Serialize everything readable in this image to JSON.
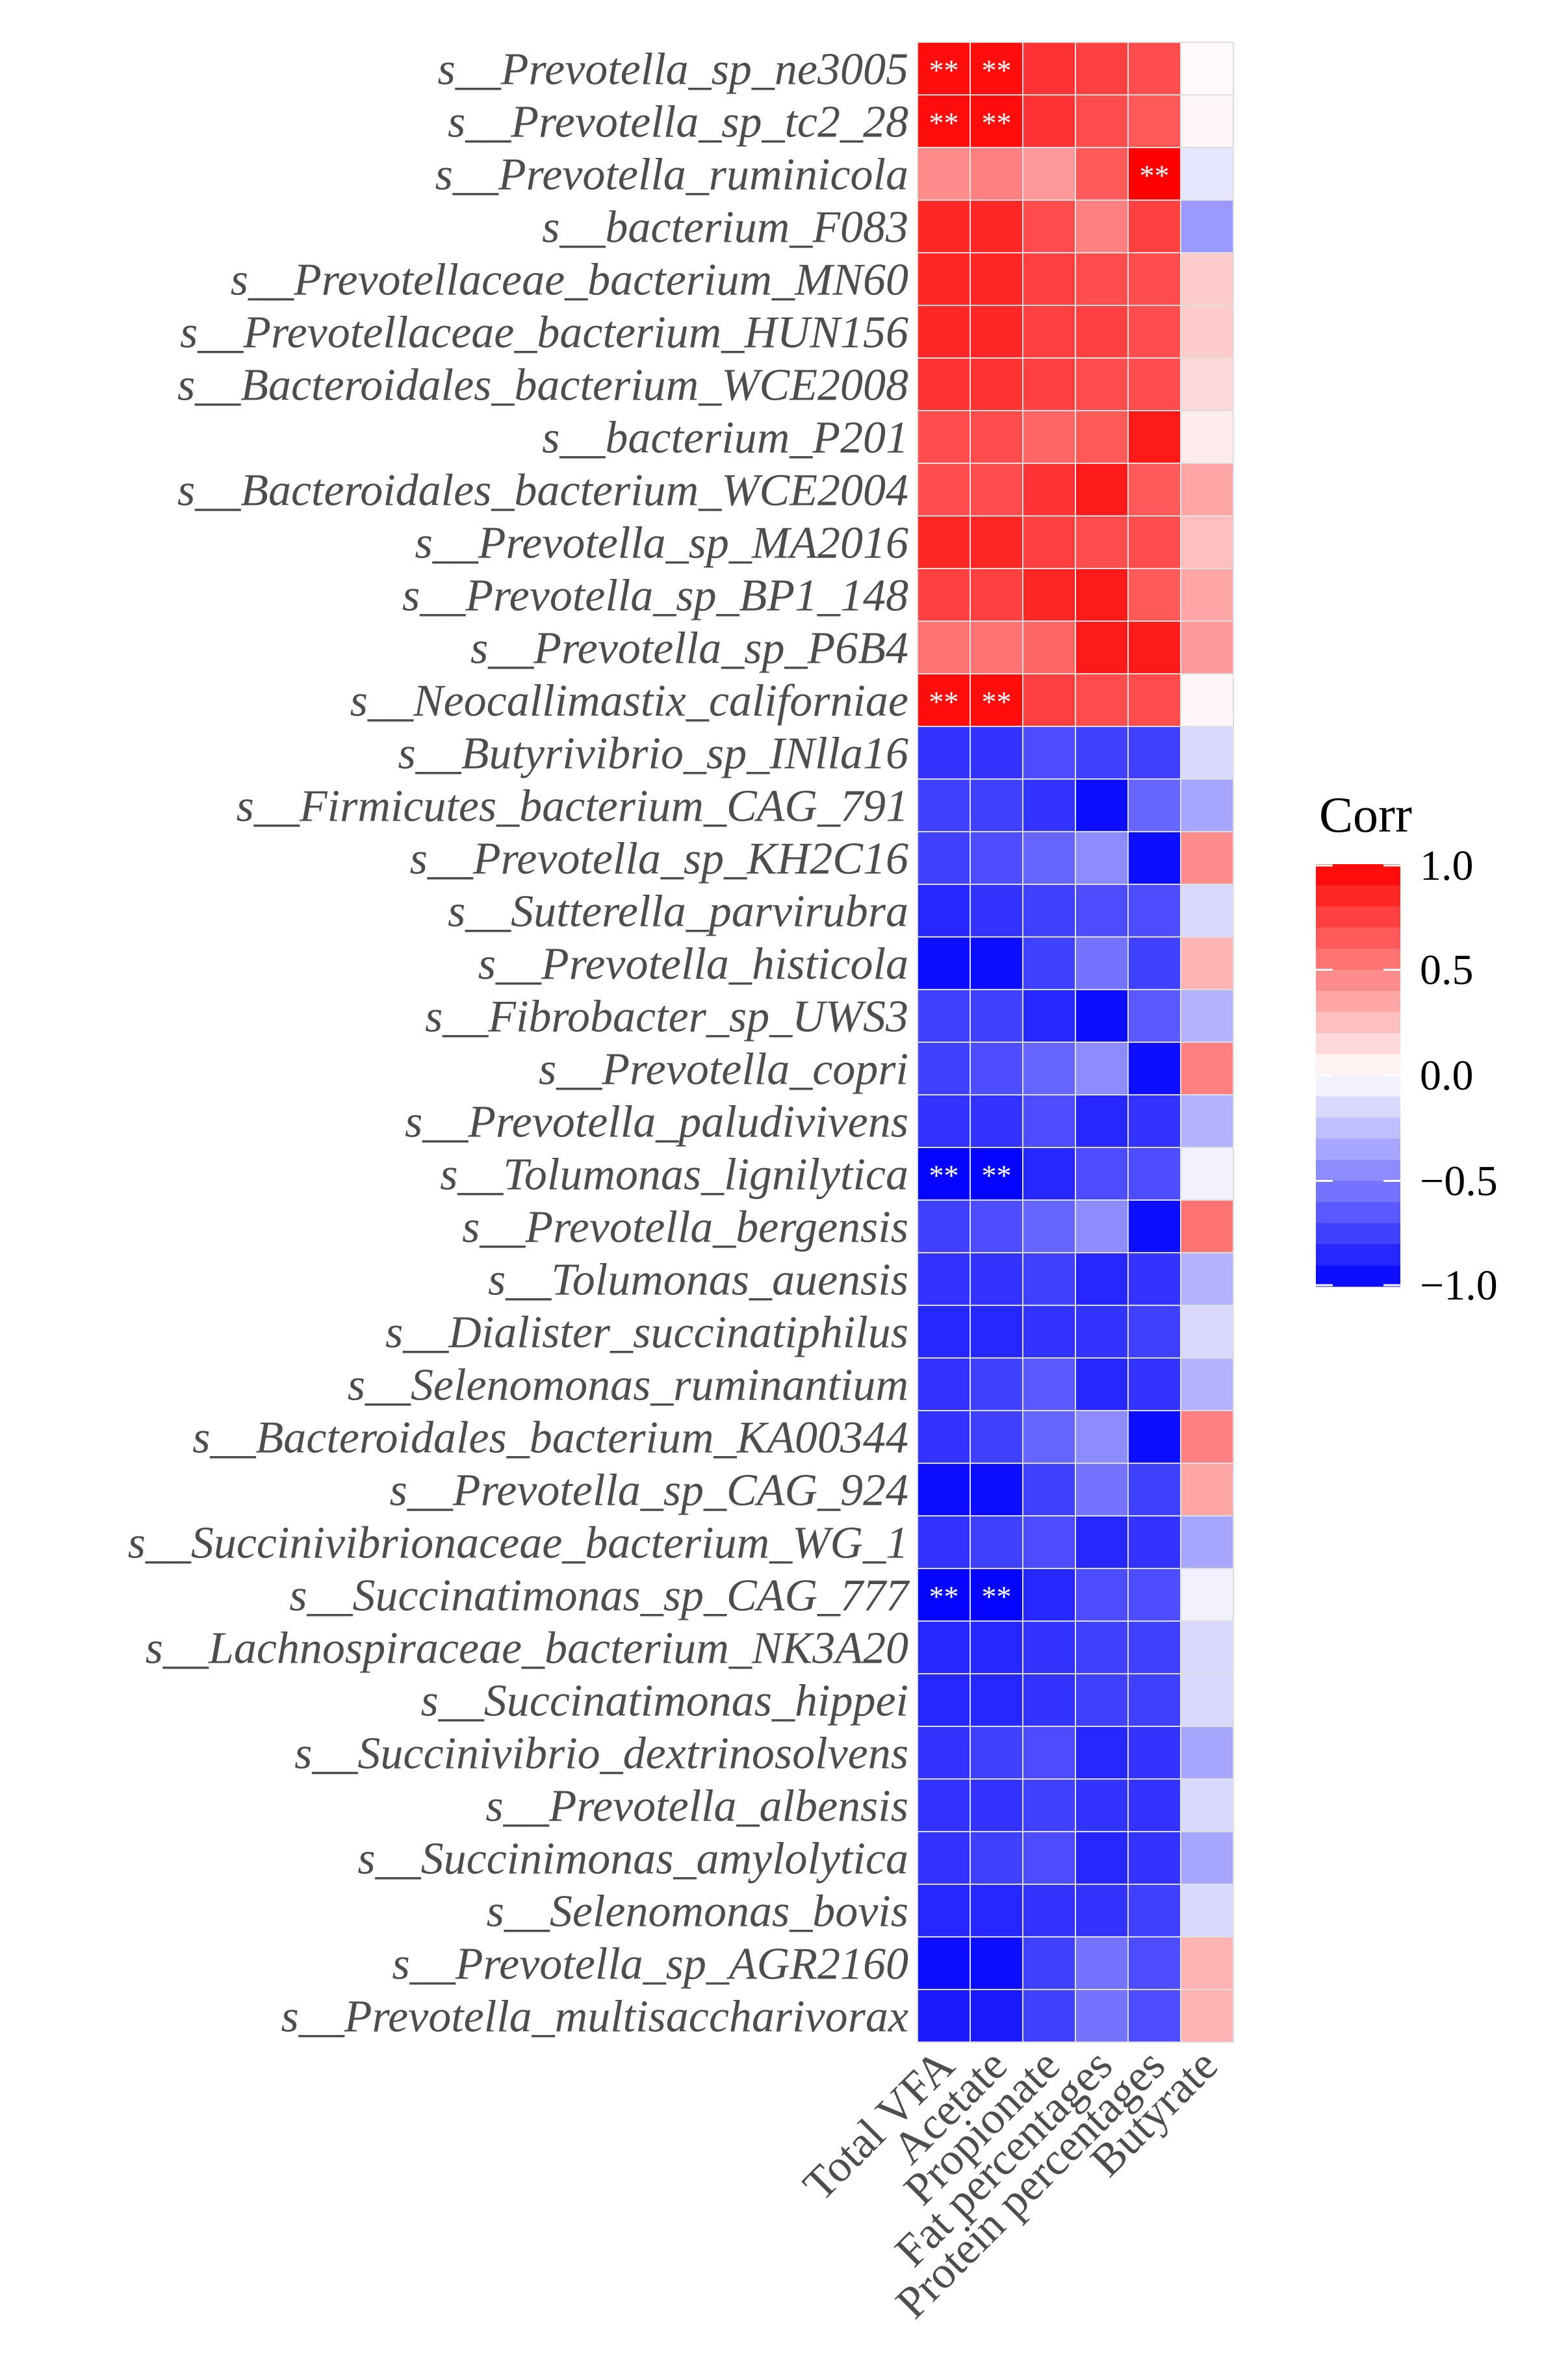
{
  "chart_data": {
    "type": "heatmap",
    "title": "",
    "xlabel": "",
    "ylabel": "",
    "columns": [
      "Total VFA",
      "Acetate",
      "Propionate",
      "Fat percentages",
      "Protein percentages",
      "Butyrate"
    ],
    "rows": [
      "s__Prevotella_sp_ne3005",
      "s__Prevotella_sp_tc2_28",
      "s__Prevotella_ruminicola",
      "s__bacterium_F083",
      "s__Prevotellaceae_bacterium_MN60",
      "s__Prevotellaceae_bacterium_HUN156",
      "s__Bacteroidales_bacterium_WCE2008",
      "s__bacterium_P201",
      "s__Bacteroidales_bacterium_WCE2004",
      "s__Prevotella_sp_MA2016",
      "s__Prevotella_sp_BP1_148",
      "s__Prevotella_sp_P6B4",
      "s__Neocallimastix_californiae",
      "s__Butyrivibrio_sp_INlla16",
      "s__Firmicutes_bacterium_CAG_791",
      "s__Prevotella_sp_KH2C16",
      "s__Sutterella_parvirubra",
      "s__Prevotella_histicola",
      "s__Fibrobacter_sp_UWS3",
      "s__Prevotella_copri",
      "s__Prevotella_paludivivens",
      "s__Tolumonas_lignilytica",
      "s__Prevotella_bergensis",
      "s__Tolumonas_auensis",
      "s__Dialister_succinatiphilus",
      "s__Selenomonas_ruminantium",
      "s__Bacteroidales_bacterium_KA00344",
      "s__Prevotella_sp_CAG_924",
      "s__Succinivibrionaceae_bacterium_WG_1",
      "s__Succinatimonas_sp_CAG_777",
      "s__Lachnospiraceae_bacterium_NK3A20",
      "s__Succinatimonas_hippei",
      "s__Succinivibrio_dextrinosolvens",
      "s__Prevotella_albensis",
      "s__Succinimonas_amylolytica",
      "s__Selenomonas_bovis",
      "s__Prevotella_sp_AGR2160",
      "s__Prevotella_multisaccharivorax"
    ],
    "values": [
      [
        0.95,
        0.95,
        0.8,
        0.75,
        0.7,
        0.02
      ],
      [
        0.95,
        0.95,
        0.8,
        0.7,
        0.65,
        0.03
      ],
      [
        0.45,
        0.5,
        0.4,
        0.65,
        1.0,
        -0.1
      ],
      [
        0.85,
        0.85,
        0.7,
        0.5,
        0.75,
        -0.4
      ],
      [
        0.85,
        0.85,
        0.75,
        0.7,
        0.7,
        0.2
      ],
      [
        0.85,
        0.85,
        0.75,
        0.75,
        0.7,
        0.2
      ],
      [
        0.8,
        0.8,
        0.75,
        0.7,
        0.7,
        0.15
      ],
      [
        0.7,
        0.7,
        0.6,
        0.65,
        0.9,
        0.08
      ],
      [
        0.7,
        0.7,
        0.8,
        0.9,
        0.65,
        0.35
      ],
      [
        0.85,
        0.85,
        0.75,
        0.7,
        0.7,
        0.25
      ],
      [
        0.75,
        0.75,
        0.85,
        0.9,
        0.65,
        0.35
      ],
      [
        0.55,
        0.55,
        0.6,
        0.9,
        0.9,
        0.4
      ],
      [
        0.95,
        0.95,
        0.75,
        0.7,
        0.7,
        0.03
      ],
      [
        -0.8,
        -0.8,
        -0.7,
        -0.75,
        -0.75,
        -0.15
      ],
      [
        -0.75,
        -0.75,
        -0.8,
        -0.95,
        -0.6,
        -0.35
      ],
      [
        -0.75,
        -0.7,
        -0.6,
        -0.45,
        -0.95,
        0.45
      ],
      [
        -0.85,
        -0.8,
        -0.75,
        -0.7,
        -0.7,
        -0.15
      ],
      [
        -0.95,
        -0.95,
        -0.75,
        -0.55,
        -0.75,
        0.3
      ],
      [
        -0.75,
        -0.75,
        -0.85,
        -0.95,
        -0.65,
        -0.3
      ],
      [
        -0.75,
        -0.7,
        -0.6,
        -0.45,
        -0.95,
        0.5
      ],
      [
        -0.8,
        -0.8,
        -0.7,
        -0.85,
        -0.8,
        -0.3
      ],
      [
        -0.98,
        -0.98,
        -0.85,
        -0.7,
        -0.7,
        -0.05
      ],
      [
        -0.75,
        -0.7,
        -0.6,
        -0.45,
        -0.95,
        0.55
      ],
      [
        -0.8,
        -0.8,
        -0.75,
        -0.85,
        -0.8,
        -0.3
      ],
      [
        -0.85,
        -0.85,
        -0.8,
        -0.8,
        -0.75,
        -0.15
      ],
      [
        -0.8,
        -0.75,
        -0.65,
        -0.85,
        -0.8,
        -0.3
      ],
      [
        -0.8,
        -0.75,
        -0.6,
        -0.45,
        -0.95,
        0.5
      ],
      [
        -0.95,
        -0.95,
        -0.75,
        -0.55,
        -0.75,
        0.35
      ],
      [
        -0.8,
        -0.75,
        -0.7,
        -0.85,
        -0.8,
        -0.35
      ],
      [
        -0.98,
        -0.98,
        -0.85,
        -0.7,
        -0.7,
        -0.05
      ],
      [
        -0.85,
        -0.85,
        -0.8,
        -0.75,
        -0.75,
        -0.15
      ],
      [
        -0.85,
        -0.85,
        -0.8,
        -0.75,
        -0.75,
        -0.15
      ],
      [
        -0.8,
        -0.75,
        -0.7,
        -0.85,
        -0.8,
        -0.35
      ],
      [
        -0.8,
        -0.8,
        -0.75,
        -0.8,
        -0.8,
        -0.15
      ],
      [
        -0.8,
        -0.75,
        -0.7,
        -0.85,
        -0.8,
        -0.35
      ],
      [
        -0.85,
        -0.85,
        -0.8,
        -0.8,
        -0.75,
        -0.15
      ],
      [
        -0.95,
        -0.95,
        -0.75,
        -0.55,
        -0.7,
        0.3
      ],
      [
        -0.9,
        -0.9,
        -0.75,
        -0.55,
        -0.7,
        0.3
      ]
    ],
    "significance": [
      {
        "row": 0,
        "col": 0,
        "label": "**"
      },
      {
        "row": 0,
        "col": 1,
        "label": "**"
      },
      {
        "row": 1,
        "col": 0,
        "label": "**"
      },
      {
        "row": 1,
        "col": 1,
        "label": "**"
      },
      {
        "row": 2,
        "col": 4,
        "label": "**"
      },
      {
        "row": 12,
        "col": 0,
        "label": "**"
      },
      {
        "row": 12,
        "col": 1,
        "label": "**"
      },
      {
        "row": 21,
        "col": 0,
        "label": "**"
      },
      {
        "row": 21,
        "col": 1,
        "label": "**"
      },
      {
        "row": 29,
        "col": 0,
        "label": "**"
      },
      {
        "row": 29,
        "col": 1,
        "label": "**"
      }
    ],
    "legend": {
      "title": "Corr",
      "range": [
        -1.0,
        1.0
      ],
      "ticks": [
        1.0,
        0.5,
        0.0,
        -0.5,
        -1.0
      ],
      "tick_labels": [
        "1.0",
        "0.5",
        "0.0",
        "−0.5",
        "−1.0"
      ],
      "position": "right"
    },
    "colors": {
      "high": "#ff0000",
      "mid": "#ffffff",
      "low": "#0000ff",
      "grid": "#dedede",
      "text": "#4d4d4d"
    }
  }
}
